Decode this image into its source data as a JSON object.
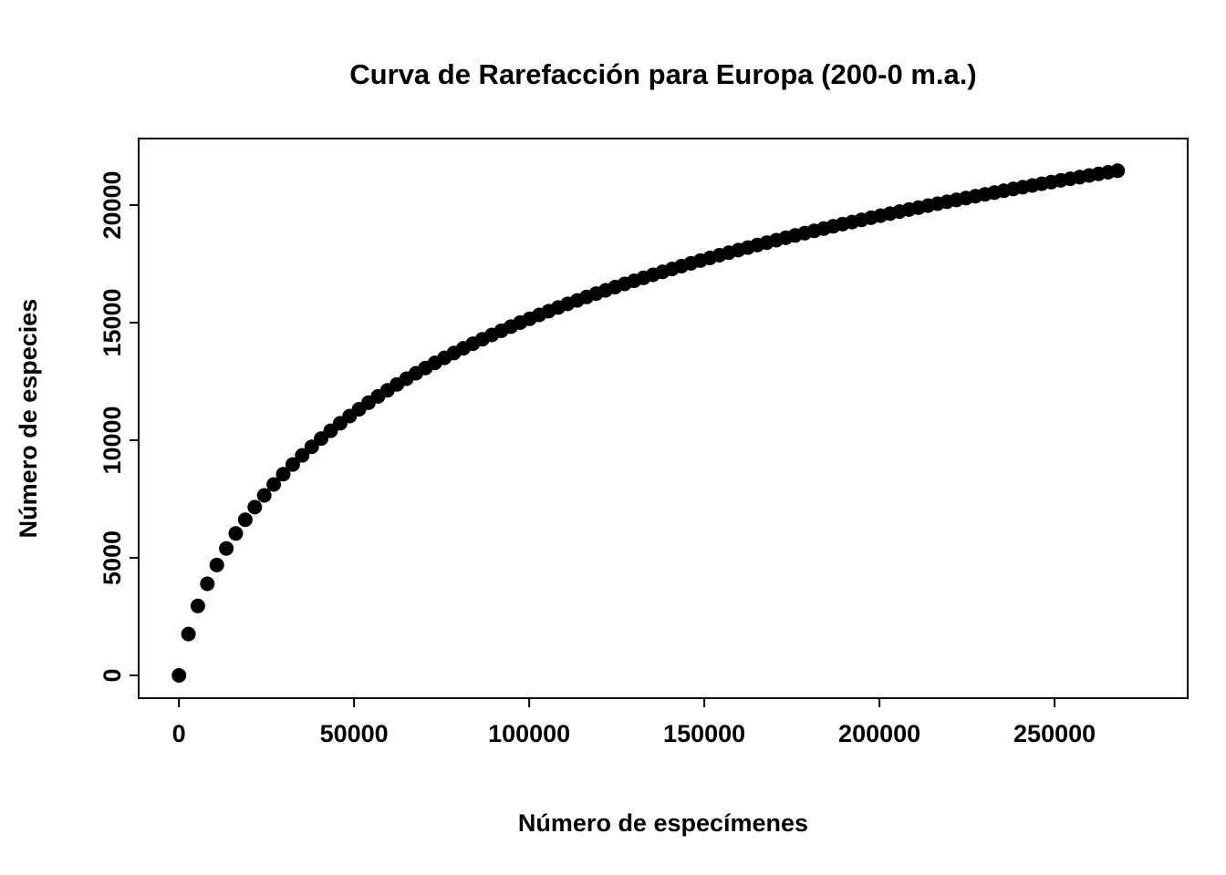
{
  "background_color": "#ffffff",
  "chart_data": {
    "type": "scatter",
    "title": "Curva de Rarefacción para Europa (200-0 m.a.)",
    "xlabel": "Número de especímenes",
    "ylabel": "Número de especies",
    "point_color": "#000000",
    "axis_color": "#000000",
    "grid": false,
    "legend": false,
    "xlim": [
      -11500,
      288000
    ],
    "ylim": [
      -970,
      22830
    ],
    "x_ticks": [
      0,
      50000,
      100000,
      150000,
      200000,
      250000
    ],
    "x_tick_labels": [
      "0",
      "50000",
      "100000",
      "150000",
      "200000",
      "250000"
    ],
    "y_ticks": [
      0,
      5000,
      10000,
      15000,
      20000
    ],
    "y_tick_labels": [
      "0",
      "5000",
      "10000",
      "15000",
      "20000"
    ],
    "points": [
      [
        0,
        0
      ],
      [
        2707,
        1757
      ],
      [
        5414,
        2954
      ],
      [
        8121,
        3895
      ],
      [
        10828,
        4692
      ],
      [
        13535,
        5397
      ],
      [
        16242,
        6035
      ],
      [
        18949,
        6618
      ],
      [
        21656,
        7155
      ],
      [
        24363,
        7654
      ],
      [
        27070,
        8119
      ],
      [
        29777,
        8556
      ],
      [
        32484,
        8967
      ],
      [
        35191,
        9355
      ],
      [
        37898,
        9722
      ],
      [
        40605,
        10072
      ],
      [
        43312,
        10404
      ],
      [
        46019,
        10722
      ],
      [
        48726,
        11026
      ],
      [
        51433,
        11317
      ],
      [
        54140,
        11597
      ],
      [
        56847,
        11866
      ],
      [
        59554,
        12124
      ],
      [
        62261,
        12374
      ],
      [
        64968,
        12615
      ],
      [
        67675,
        12848
      ],
      [
        70382,
        13074
      ],
      [
        73089,
        13292
      ],
      [
        75796,
        13504
      ],
      [
        78503,
        13710
      ],
      [
        81210,
        13910
      ],
      [
        83917,
        14104
      ],
      [
        86624,
        14293
      ],
      [
        89331,
        14477
      ],
      [
        92038,
        14656
      ],
      [
        94745,
        14831
      ],
      [
        97452,
        15002
      ],
      [
        100159,
        15168
      ],
      [
        102866,
        15331
      ],
      [
        105573,
        15490
      ],
      [
        108280,
        15645
      ],
      [
        110987,
        15797
      ],
      [
        113694,
        15946
      ],
      [
        116401,
        16092
      ],
      [
        119108,
        16235
      ],
      [
        121815,
        16375
      ],
      [
        124522,
        16512
      ],
      [
        127229,
        16646
      ],
      [
        129936,
        16778
      ],
      [
        132643,
        16908
      ],
      [
        135350,
        17035
      ],
      [
        138057,
        17161
      ],
      [
        140764,
        17284
      ],
      [
        143471,
        17404
      ],
      [
        146178,
        17523
      ],
      [
        148885,
        17640
      ],
      [
        151592,
        17754
      ],
      [
        154299,
        17867
      ],
      [
        157006,
        17978
      ],
      [
        159713,
        18087
      ],
      [
        162420,
        18195
      ],
      [
        165127,
        18301
      ],
      [
        167834,
        18405
      ],
      [
        170541,
        18508
      ],
      [
        173248,
        18610
      ],
      [
        175955,
        18710
      ],
      [
        178662,
        18808
      ],
      [
        181369,
        18905
      ],
      [
        184076,
        19001
      ],
      [
        186783,
        19096
      ],
      [
        189490,
        19189
      ],
      [
        192197,
        19281
      ],
      [
        194904,
        19372
      ],
      [
        197611,
        19461
      ],
      [
        200318,
        19550
      ],
      [
        203025,
        19637
      ],
      [
        205732,
        19724
      ],
      [
        208439,
        19809
      ],
      [
        211146,
        19893
      ],
      [
        213853,
        19977
      ],
      [
        216560,
        20059
      ],
      [
        219267,
        20140
      ],
      [
        221974,
        20221
      ],
      [
        224681,
        20300
      ],
      [
        227388,
        20379
      ],
      [
        230095,
        20457
      ],
      [
        232802,
        20533
      ],
      [
        235509,
        20609
      ],
      [
        238216,
        20685
      ],
      [
        240923,
        20759
      ],
      [
        243630,
        20833
      ],
      [
        246337,
        20906
      ],
      [
        249044,
        20978
      ],
      [
        251751,
        21049
      ],
      [
        254458,
        21120
      ],
      [
        257165,
        21190
      ],
      [
        259872,
        21259
      ],
      [
        262579,
        21328
      ],
      [
        265286,
        21396
      ],
      [
        267993,
        21463
      ]
    ]
  }
}
